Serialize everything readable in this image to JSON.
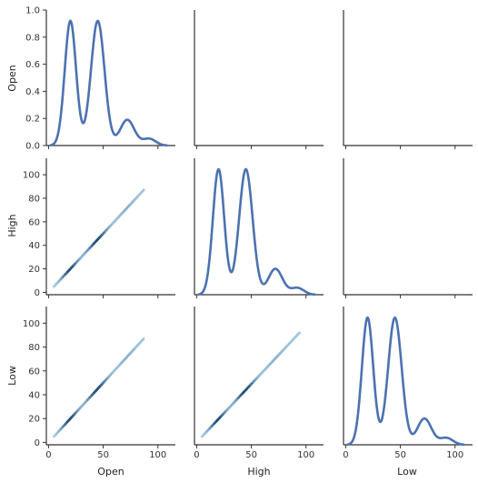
{
  "chart_data": {
    "type": "pair-grid",
    "variables": [
      "Open",
      "High",
      "Low"
    ],
    "layout": "lower-triangle + diagonal",
    "diagonal": {
      "type": "kde-line",
      "color": "#4c72b0",
      "ylim": [
        0,
        1.0
      ],
      "yticks": [
        "0.0",
        "0.2",
        "0.4",
        "0.6",
        "0.8",
        "1.0"
      ],
      "peaks": [
        {
          "center": 20,
          "height": 0.92,
          "width": 5.2
        },
        {
          "center": 45,
          "height": 0.92,
          "width": 6.2
        },
        {
          "center": 72,
          "height": 0.19,
          "width": 6.5
        },
        {
          "center": 92,
          "height": 0.05,
          "width": 6.0
        }
      ]
    },
    "offdiagonal": {
      "type": "kde-2d",
      "color_dark": "#1f4e79",
      "color_light": "#a9cce3",
      "xlim": [
        -2,
        116
      ],
      "ylim": [
        -2,
        114
      ],
      "xticks": [
        "0",
        "50",
        "100"
      ],
      "yticks": [
        "0",
        "20",
        "40",
        "60",
        "80",
        "100"
      ],
      "panels": [
        {
          "row": 1,
          "col": 0,
          "x": [
            5,
            87
          ],
          "y": [
            5,
            87
          ]
        },
        {
          "row": 2,
          "col": 0,
          "x": [
            5,
            87
          ],
          "y": [
            5,
            87
          ]
        },
        {
          "row": 2,
          "col": 1,
          "x": [
            5,
            94
          ],
          "y": [
            5,
            92
          ]
        }
      ]
    },
    "xlabels": [
      "Open",
      "High",
      "Low"
    ],
    "ylabels": [
      "Open",
      "High",
      "Low"
    ]
  }
}
